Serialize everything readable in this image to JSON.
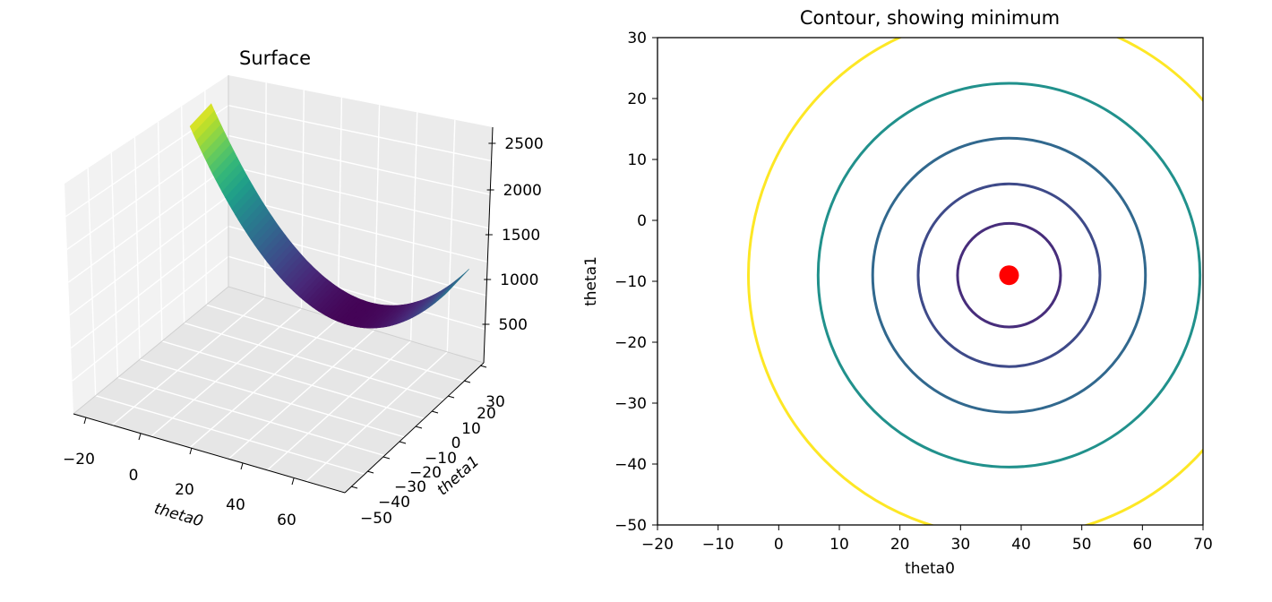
{
  "chart_data": [
    {
      "type": "surface3d",
      "title": "Surface",
      "xlabel": "theta0",
      "ylabel": "theta1",
      "zlabel": "",
      "x_ticks": [
        -20,
        0,
        20,
        40,
        60
      ],
      "x_tick_labels": [
        "−20",
        "0",
        "20",
        "40",
        "60"
      ],
      "y_ticks": [
        -50,
        -40,
        -30,
        -20,
        -10,
        0,
        10,
        20,
        30
      ],
      "y_tick_labels": [
        "−50",
        "−40",
        "−30",
        "−20",
        "−10",
        "0",
        "10",
        "20",
        "30"
      ],
      "z_ticks": [
        500,
        1000,
        1500,
        2000,
        2500
      ],
      "z_tick_labels": [
        "500",
        "1000",
        "1500",
        "2000",
        "2500"
      ],
      "colormap": "viridis",
      "description_grid": true
    },
    {
      "type": "contour",
      "title": "Contour, showing minimum",
      "xlabel": "theta0",
      "ylabel": "theta1",
      "xlim": [
        -20,
        70
      ],
      "ylim": [
        -50,
        30
      ],
      "x_ticks": [
        -20,
        -10,
        0,
        10,
        20,
        30,
        40,
        50,
        60,
        70
      ],
      "x_tick_labels": [
        "−20",
        "−10",
        "0",
        "10",
        "20",
        "30",
        "40",
        "50",
        "60",
        "70"
      ],
      "y_ticks": [
        -50,
        -40,
        -30,
        -20,
        -10,
        0,
        10,
        20,
        30
      ],
      "y_tick_labels": [
        "−50",
        "−40",
        "−30",
        "−20",
        "−10",
        "0",
        "10",
        "20",
        "30"
      ],
      "minimum": {
        "x": 38,
        "y": -9,
        "color": "#ff0000"
      },
      "contours": [
        {
          "radius": 8.5,
          "color": "#472d7b"
        },
        {
          "radius": 15.0,
          "color": "#3e4a89"
        },
        {
          "radius": 22.5,
          "color": "#31688e"
        },
        {
          "radius": 31.5,
          "color": "#21918c"
        },
        {
          "radius": 43.0,
          "color": "#fde725"
        }
      ]
    }
  ]
}
